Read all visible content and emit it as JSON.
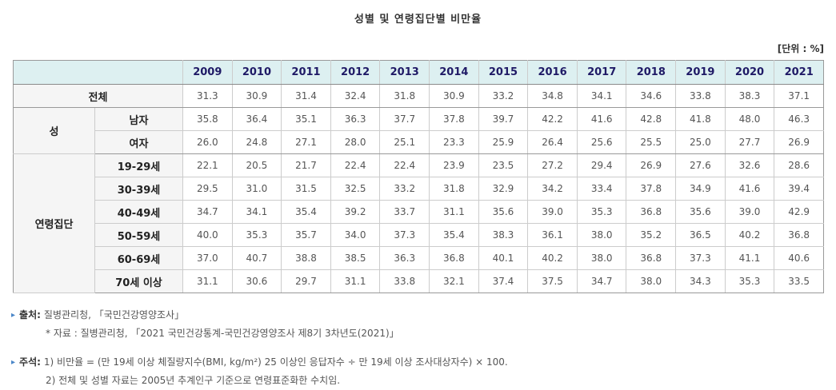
{
  "page": {
    "title": "성별 및 연령집단별 비만율",
    "unit_label": "[단위 : %]"
  },
  "chart_data": {
    "type": "table",
    "title": "성별 및 연령집단별 비만율",
    "unit": "%",
    "columns": [
      "2009",
      "2010",
      "2011",
      "2012",
      "2013",
      "2014",
      "2015",
      "2016",
      "2017",
      "2018",
      "2019",
      "2020",
      "2021"
    ],
    "row_groups": [
      {
        "name": "전체",
        "merged": true,
        "rows": [
          {
            "label": "전체",
            "values": [
              "31.3",
              "30.9",
              "31.4",
              "32.4",
              "31.8",
              "30.9",
              "33.2",
              "34.8",
              "34.1",
              "34.6",
              "33.8",
              "38.3",
              "37.1"
            ]
          }
        ]
      },
      {
        "name": "성",
        "merged": false,
        "rows": [
          {
            "label": "남자",
            "values": [
              "35.8",
              "36.4",
              "35.1",
              "36.3",
              "37.7",
              "37.8",
              "39.7",
              "42.2",
              "41.6",
              "42.8",
              "41.8",
              "48.0",
              "46.3"
            ]
          },
          {
            "label": "여자",
            "values": [
              "26.0",
              "24.8",
              "27.1",
              "28.0",
              "25.1",
              "23.3",
              "25.9",
              "26.4",
              "25.6",
              "25.5",
              "25.0",
              "27.7",
              "26.9"
            ]
          }
        ]
      },
      {
        "name": "연령집단",
        "merged": false,
        "rows": [
          {
            "label": "19-29세",
            "values": [
              "22.1",
              "20.5",
              "21.7",
              "22.4",
              "22.4",
              "23.9",
              "23.5",
              "27.2",
              "29.4",
              "26.9",
              "27.6",
              "32.6",
              "28.6"
            ]
          },
          {
            "label": "30-39세",
            "values": [
              "29.5",
              "31.0",
              "31.5",
              "32.5",
              "33.2",
              "31.8",
              "32.9",
              "34.2",
              "33.4",
              "37.8",
              "34.9",
              "41.6",
              "39.4"
            ]
          },
          {
            "label": "40-49세",
            "values": [
              "34.7",
              "34.1",
              "35.4",
              "39.2",
              "33.7",
              "31.1",
              "35.6",
              "39.0",
              "35.3",
              "36.8",
              "35.6",
              "39.0",
              "42.9"
            ]
          },
          {
            "label": "50-59세",
            "values": [
              "40.0",
              "35.3",
              "35.7",
              "34.0",
              "37.3",
              "35.4",
              "38.3",
              "36.1",
              "38.0",
              "35.2",
              "36.5",
              "40.2",
              "36.8"
            ]
          },
          {
            "label": "60-69세",
            "values": [
              "37.0",
              "40.7",
              "38.8",
              "38.5",
              "36.3",
              "36.8",
              "40.1",
              "40.2",
              "38.0",
              "36.8",
              "37.3",
              "41.1",
              "40.6"
            ]
          },
          {
            "label": "70세 이상",
            "values": [
              "31.1",
              "30.6",
              "29.7",
              "31.1",
              "33.8",
              "32.1",
              "37.4",
              "37.5",
              "34.7",
              "38.0",
              "34.3",
              "35.3",
              "33.5"
            ]
          }
        ]
      }
    ]
  },
  "footnotes": {
    "source": {
      "bullet": "▸",
      "label": "출처:",
      "text": "질병관리청, 「국민건강영양조사」",
      "sub": "* 자료 : 질병관리청, 「2021 국민건강통계-국민건강영양조사 제8기 3차년도(2021)」"
    },
    "annotation": {
      "bullet": "▸",
      "label": "주석:",
      "line1": "1) 비만율 = (만 19세 이상 체질량지수(BMI, kg/m²) 25 이상인 응답자수 ÷ 만 19세 이상 조사대상자수) × 100.",
      "line2": "2) 전체 및 성별 자료는 2005년 추계인구 기준으로 연령표준화한 수치임."
    }
  },
  "colors": {
    "header_bg": "#ddf0f1",
    "header_text": "#1f1a66",
    "label_bg": "#f5f5f5",
    "border_strong": "#999999",
    "border_light": "#cccccc",
    "note_bullet": "#4a86c8"
  }
}
